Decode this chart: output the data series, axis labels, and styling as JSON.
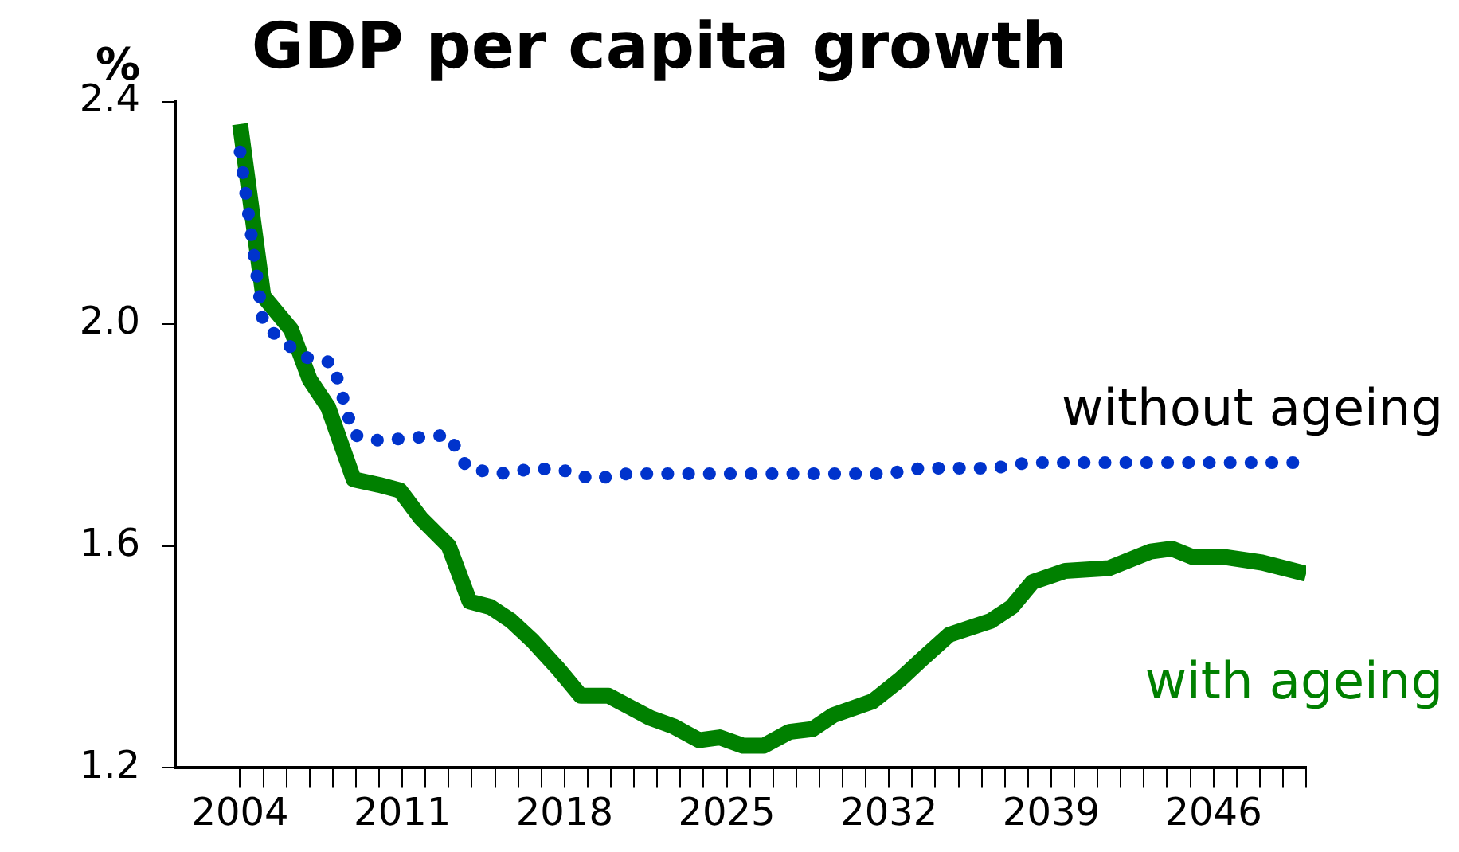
{
  "chart_data": {
    "type": "line",
    "title": "GDP per capita growth",
    "ylabel": "%",
    "legend": false,
    "grid": false,
    "marker": "none",
    "xlim": [
      2001.2,
      2050
    ],
    "xticks": [
      2004,
      {
        "value": 2005,
        "label": null
      },
      {
        "value": 2006,
        "label": null
      },
      {
        "value": 2007,
        "label": null
      },
      {
        "value": 2008,
        "label": null
      },
      {
        "value": 2009,
        "label": null
      },
      {
        "value": 2010,
        "label": null
      },
      2011,
      {
        "value": 2012,
        "label": null
      },
      {
        "value": 2013,
        "label": null
      },
      {
        "value": 2014,
        "label": null
      },
      {
        "value": 2015,
        "label": null
      },
      {
        "value": 2016,
        "label": null
      },
      {
        "value": 2017,
        "label": null
      },
      2018,
      {
        "value": 2019,
        "label": null
      },
      {
        "value": 2020,
        "label": null
      },
      {
        "value": 2021,
        "label": null
      },
      {
        "value": 2022,
        "label": null
      },
      {
        "value": 2023,
        "label": null
      },
      {
        "value": 2024,
        "label": null
      },
      2025,
      {
        "value": 2026,
        "label": null
      },
      {
        "value": 2027,
        "label": null
      },
      {
        "value": 2028,
        "label": null
      },
      {
        "value": 2029,
        "label": null
      },
      {
        "value": 2030,
        "label": null
      },
      {
        "value": 2031,
        "label": null
      },
      2032,
      {
        "value": 2033,
        "label": null
      },
      {
        "value": 2034,
        "label": null
      },
      {
        "value": 2035,
        "label": null
      },
      {
        "value": 2036,
        "label": null
      },
      {
        "value": 2037,
        "label": null
      },
      {
        "value": 2038,
        "label": null
      },
      2039,
      {
        "value": 2040,
        "label": null
      },
      {
        "value": 2041,
        "label": null
      },
      {
        "value": 2042,
        "label": null
      },
      {
        "value": 2043,
        "label": null
      },
      {
        "value": 2044,
        "label": null
      },
      {
        "value": 2045,
        "label": null
      },
      2046,
      {
        "value": 2047,
        "label": null
      },
      {
        "value": 2048,
        "label": null
      },
      {
        "value": 2049,
        "label": null
      },
      {
        "value": 2050,
        "label": null
      }
    ],
    "ylim": [
      1.2,
      2.4
    ],
    "yticks": [
      1.2,
      1.6,
      {
        "value": 2,
        "label": "2.0"
      },
      2.4
    ],
    "series": [
      {
        "name": "without ageing",
        "color": "#0033cc",
        "line_style": "dotted",
        "x": [
          2004,
          2005,
          2005.8,
          2006.8,
          2008,
          2008.9,
          2010,
          2011.5,
          2013,
          2013.8,
          2015.2,
          2016.8,
          2018.1,
          2019.2,
          2020.7,
          2024,
          2025.5,
          2031.9,
          2033.4,
          2036.5,
          2038,
          2049.5
        ],
        "values": [
          2.31,
          2.0,
          1.97,
          1.94,
          1.93,
          1.8,
          1.79,
          1.795,
          1.8,
          1.74,
          1.73,
          1.74,
          1.735,
          1.72,
          1.73,
          1.73,
          1.73,
          1.73,
          1.74,
          1.74,
          1.75,
          1.75
        ]
      },
      {
        "name": "with ageing",
        "color": "#008000",
        "line_style": "solid",
        "x": [
          2004,
          2005,
          2006.2,
          2007,
          2007.8,
          2008.9,
          2010,
          2010.9,
          2011.8,
          2013,
          2013.9,
          2014.8,
          2015.7,
          2016.6,
          2017.7,
          2018.7,
          2019.9,
          2020.8,
          2021.7,
          2022.7,
          2023.8,
          2024.7,
          2025.7,
          2026.6,
          2027.7,
          2028.7,
          2029.6,
          2031.3,
          2032.5,
          2033.4,
          2034.6,
          2036.4,
          2037.3,
          2038.2,
          2039.6,
          2041.5,
          2043.3,
          2044.2,
          2045.1,
          2046.5,
          2048.1,
          2050
        ],
        "values": [
          2.36,
          2.05,
          1.99,
          1.9,
          1.85,
          1.72,
          1.71,
          1.7,
          1.65,
          1.6,
          1.5,
          1.49,
          1.465,
          1.43,
          1.38,
          1.33,
          1.33,
          1.31,
          1.29,
          1.275,
          1.25,
          1.255,
          1.24,
          1.24,
          1.265,
          1.27,
          1.295,
          1.32,
          1.36,
          1.395,
          1.44,
          1.465,
          1.49,
          1.535,
          1.555,
          1.56,
          1.59,
          1.595,
          1.58,
          1.58,
          1.57,
          1.55
        ]
      }
    ]
  }
}
